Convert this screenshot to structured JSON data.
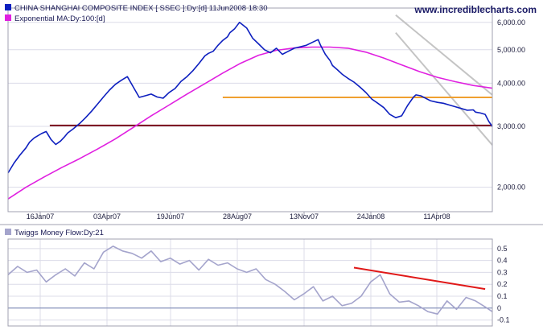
{
  "site_label": "www.incrediblecharts.com",
  "colors": {
    "price": "#0d1fbf",
    "ema": "#e020e0",
    "channel": "#c4c4c4",
    "support_upper": "#f0a030",
    "support_lower": "#7a0f1a",
    "twiggs": "#a4a4cc",
    "trendline": "#e01818",
    "grid": "#dcdce8",
    "frame": "#a0a0b0",
    "legend_box_price": "#0d1fbf",
    "legend_box_ema": "#e020e0",
    "legend_box_twiggs": "#a4a4cc"
  },
  "chart_data": [
    {
      "type": "line",
      "scale": "log",
      "legend_placement": "top-left",
      "grid": true,
      "x_tick_labels": [
        "16Jan07",
        "03Apr07",
        "19Jun07",
        "28Aug07",
        "13Nov07",
        "24Jan08",
        "11Apr08"
      ],
      "y_ticks": [
        2000,
        3000,
        4000,
        5000,
        6000
      ],
      "y_tick_labels": [
        "2,000.00",
        "3,000.00",
        "4,000.00",
        "5,000.00",
        "6,000.00"
      ],
      "ylim": [
        1700,
        6600
      ],
      "series": [
        {
          "name": "CHINA SHANGHAI COMPOSITE INDEX [ SSEC ]:Dy:[d]  11Jun2008 18:30",
          "x": [
            0,
            5,
            10,
            15,
            18,
            22,
            28,
            32,
            36,
            40,
            44,
            47,
            50,
            55,
            60,
            65,
            70,
            75,
            80,
            85,
            90,
            95,
            100,
            105,
            110,
            115,
            120,
            125,
            130,
            135,
            140,
            145,
            150,
            155,
            160,
            165,
            168,
            172,
            176,
            180,
            184,
            186,
            190,
            194,
            200,
            205,
            210,
            215,
            220,
            225,
            230,
            235,
            240,
            245,
            250,
            255,
            260,
            262,
            266,
            270,
            272,
            276,
            280,
            285,
            290,
            295,
            300,
            305,
            310,
            315,
            320,
            325,
            330,
            335,
            340,
            342,
            346,
            350,
            354,
            360,
            365,
            370,
            375,
            380,
            385,
            390,
            392,
            396,
            400,
            403,
            406
          ],
          "values": [
            2200,
            2350,
            2480,
            2600,
            2700,
            2780,
            2860,
            2900,
            2750,
            2660,
            2720,
            2790,
            2870,
            2960,
            3060,
            3180,
            3320,
            3480,
            3650,
            3820,
            3970,
            4080,
            4180,
            3900,
            3640,
            3680,
            3720,
            3650,
            3620,
            3760,
            3860,
            4050,
            4180,
            4350,
            4560,
            4800,
            4880,
            4950,
            5150,
            5320,
            5450,
            5600,
            5750,
            6000,
            5780,
            5400,
            5200,
            5000,
            4900,
            5050,
            4850,
            4950,
            5050,
            5100,
            5150,
            5250,
            5350,
            5150,
            4850,
            4650,
            4500,
            4380,
            4250,
            4130,
            4030,
            3900,
            3760,
            3600,
            3500,
            3400,
            3250,
            3180,
            3220,
            3450,
            3650,
            3700,
            3680,
            3620,
            3560,
            3520,
            3500,
            3460,
            3420,
            3380,
            3340,
            3350,
            3300,
            3280,
            3250,
            3100,
            3000
          ]
        },
        {
          "name": "Exponential MA:Dy:100:[d]",
          "x": [
            0,
            15,
            30,
            45,
            60,
            75,
            90,
            105,
            120,
            135,
            150,
            165,
            180,
            195,
            210,
            225,
            240,
            255,
            270,
            285,
            300,
            315,
            330,
            345,
            360,
            375,
            390,
            406
          ],
          "values": [
            1850,
            2000,
            2140,
            2280,
            2420,
            2580,
            2760,
            2980,
            3220,
            3460,
            3720,
            3990,
            4280,
            4570,
            4820,
            4980,
            5060,
            5090,
            5090,
            5050,
            4920,
            4730,
            4520,
            4320,
            4160,
            4040,
            3940,
            3870
          ]
        }
      ],
      "reference_lines": [
        {
          "from_x": 35,
          "to_x": 406,
          "value": 3020
        },
        {
          "from_x": 180,
          "to_x": 406,
          "value": 3640
        }
      ],
      "channel_lines": [
        {
          "from_x": 325,
          "from_value": 6300,
          "to_x": 406,
          "to_value": 3700
        },
        {
          "from_x": 325,
          "from_value": 5600,
          "to_x": 406,
          "to_value": 2650
        }
      ]
    },
    {
      "type": "line",
      "legend_placement": "top-left",
      "grid": true,
      "y_ticks": [
        -0.1,
        0,
        0.1,
        0.2,
        0.3,
        0.4,
        0.5
      ],
      "y_tick_labels": [
        "-0.1",
        "0",
        "0.1",
        "0.2",
        "0.3",
        "0.4",
        "0.5"
      ],
      "ylim": [
        -0.15,
        0.58
      ],
      "series": [
        {
          "name": "Twiggs Money Flow:Dy:21",
          "x": [
            0,
            8,
            16,
            24,
            32,
            40,
            48,
            56,
            64,
            72,
            80,
            88,
            96,
            104,
            112,
            120,
            128,
            136,
            144,
            152,
            160,
            168,
            176,
            184,
            192,
            200,
            208,
            216,
            224,
            232,
            240,
            248,
            256,
            264,
            272,
            280,
            288,
            296,
            304,
            312,
            320,
            328,
            336,
            344,
            352,
            360,
            368,
            376,
            384,
            392,
            400,
            406
          ],
          "values": [
            0.28,
            0.35,
            0.3,
            0.32,
            0.22,
            0.28,
            0.33,
            0.27,
            0.38,
            0.33,
            0.47,
            0.52,
            0.48,
            0.46,
            0.42,
            0.48,
            0.39,
            0.42,
            0.37,
            0.4,
            0.32,
            0.41,
            0.36,
            0.38,
            0.33,
            0.3,
            0.33,
            0.24,
            0.2,
            0.14,
            0.07,
            0.12,
            0.18,
            0.06,
            0.1,
            0.02,
            0.04,
            0.1,
            0.22,
            0.28,
            0.12,
            0.05,
            0.06,
            0.02,
            -0.03,
            -0.05,
            0.06,
            -0.01,
            0.09,
            0.06,
            0.01,
            -0.03
          ]
        }
      ],
      "reference_lines": [
        {
          "from_x": 290,
          "to_x": 406,
          "value": 0
        }
      ],
      "trend_lines": [
        {
          "from_x": 290,
          "from_value": 0.34,
          "to_x": 400,
          "to_value": 0.16
        }
      ]
    }
  ]
}
